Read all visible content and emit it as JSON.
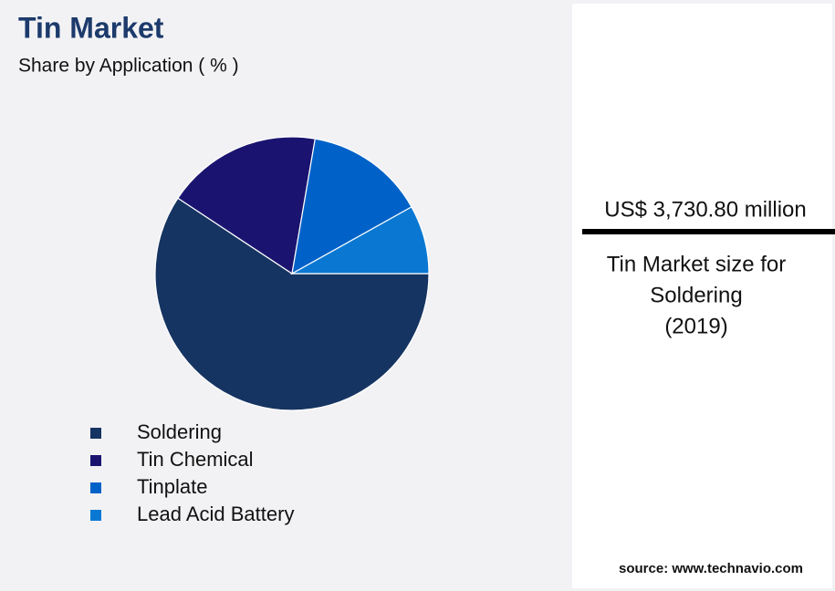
{
  "chart_data": {
    "type": "pie",
    "title": "Tin Market",
    "subtitle": "Share by Application ( % )",
    "categories": [
      "Soldering",
      "Tin Chemical",
      "Tinplate",
      "Lead Acid Battery"
    ],
    "values": [
      59.3,
      18.4,
      14.2,
      8.1
    ],
    "colors": [
      "#163461",
      "#1a1470",
      "#0062c8",
      "#0a78d2"
    ]
  },
  "callout": {
    "value": "US$ 3,730.80 million",
    "caption": [
      "Tin Market size for",
      "Soldering",
      "(2019)"
    ]
  },
  "source": "source: www.technavio.com"
}
